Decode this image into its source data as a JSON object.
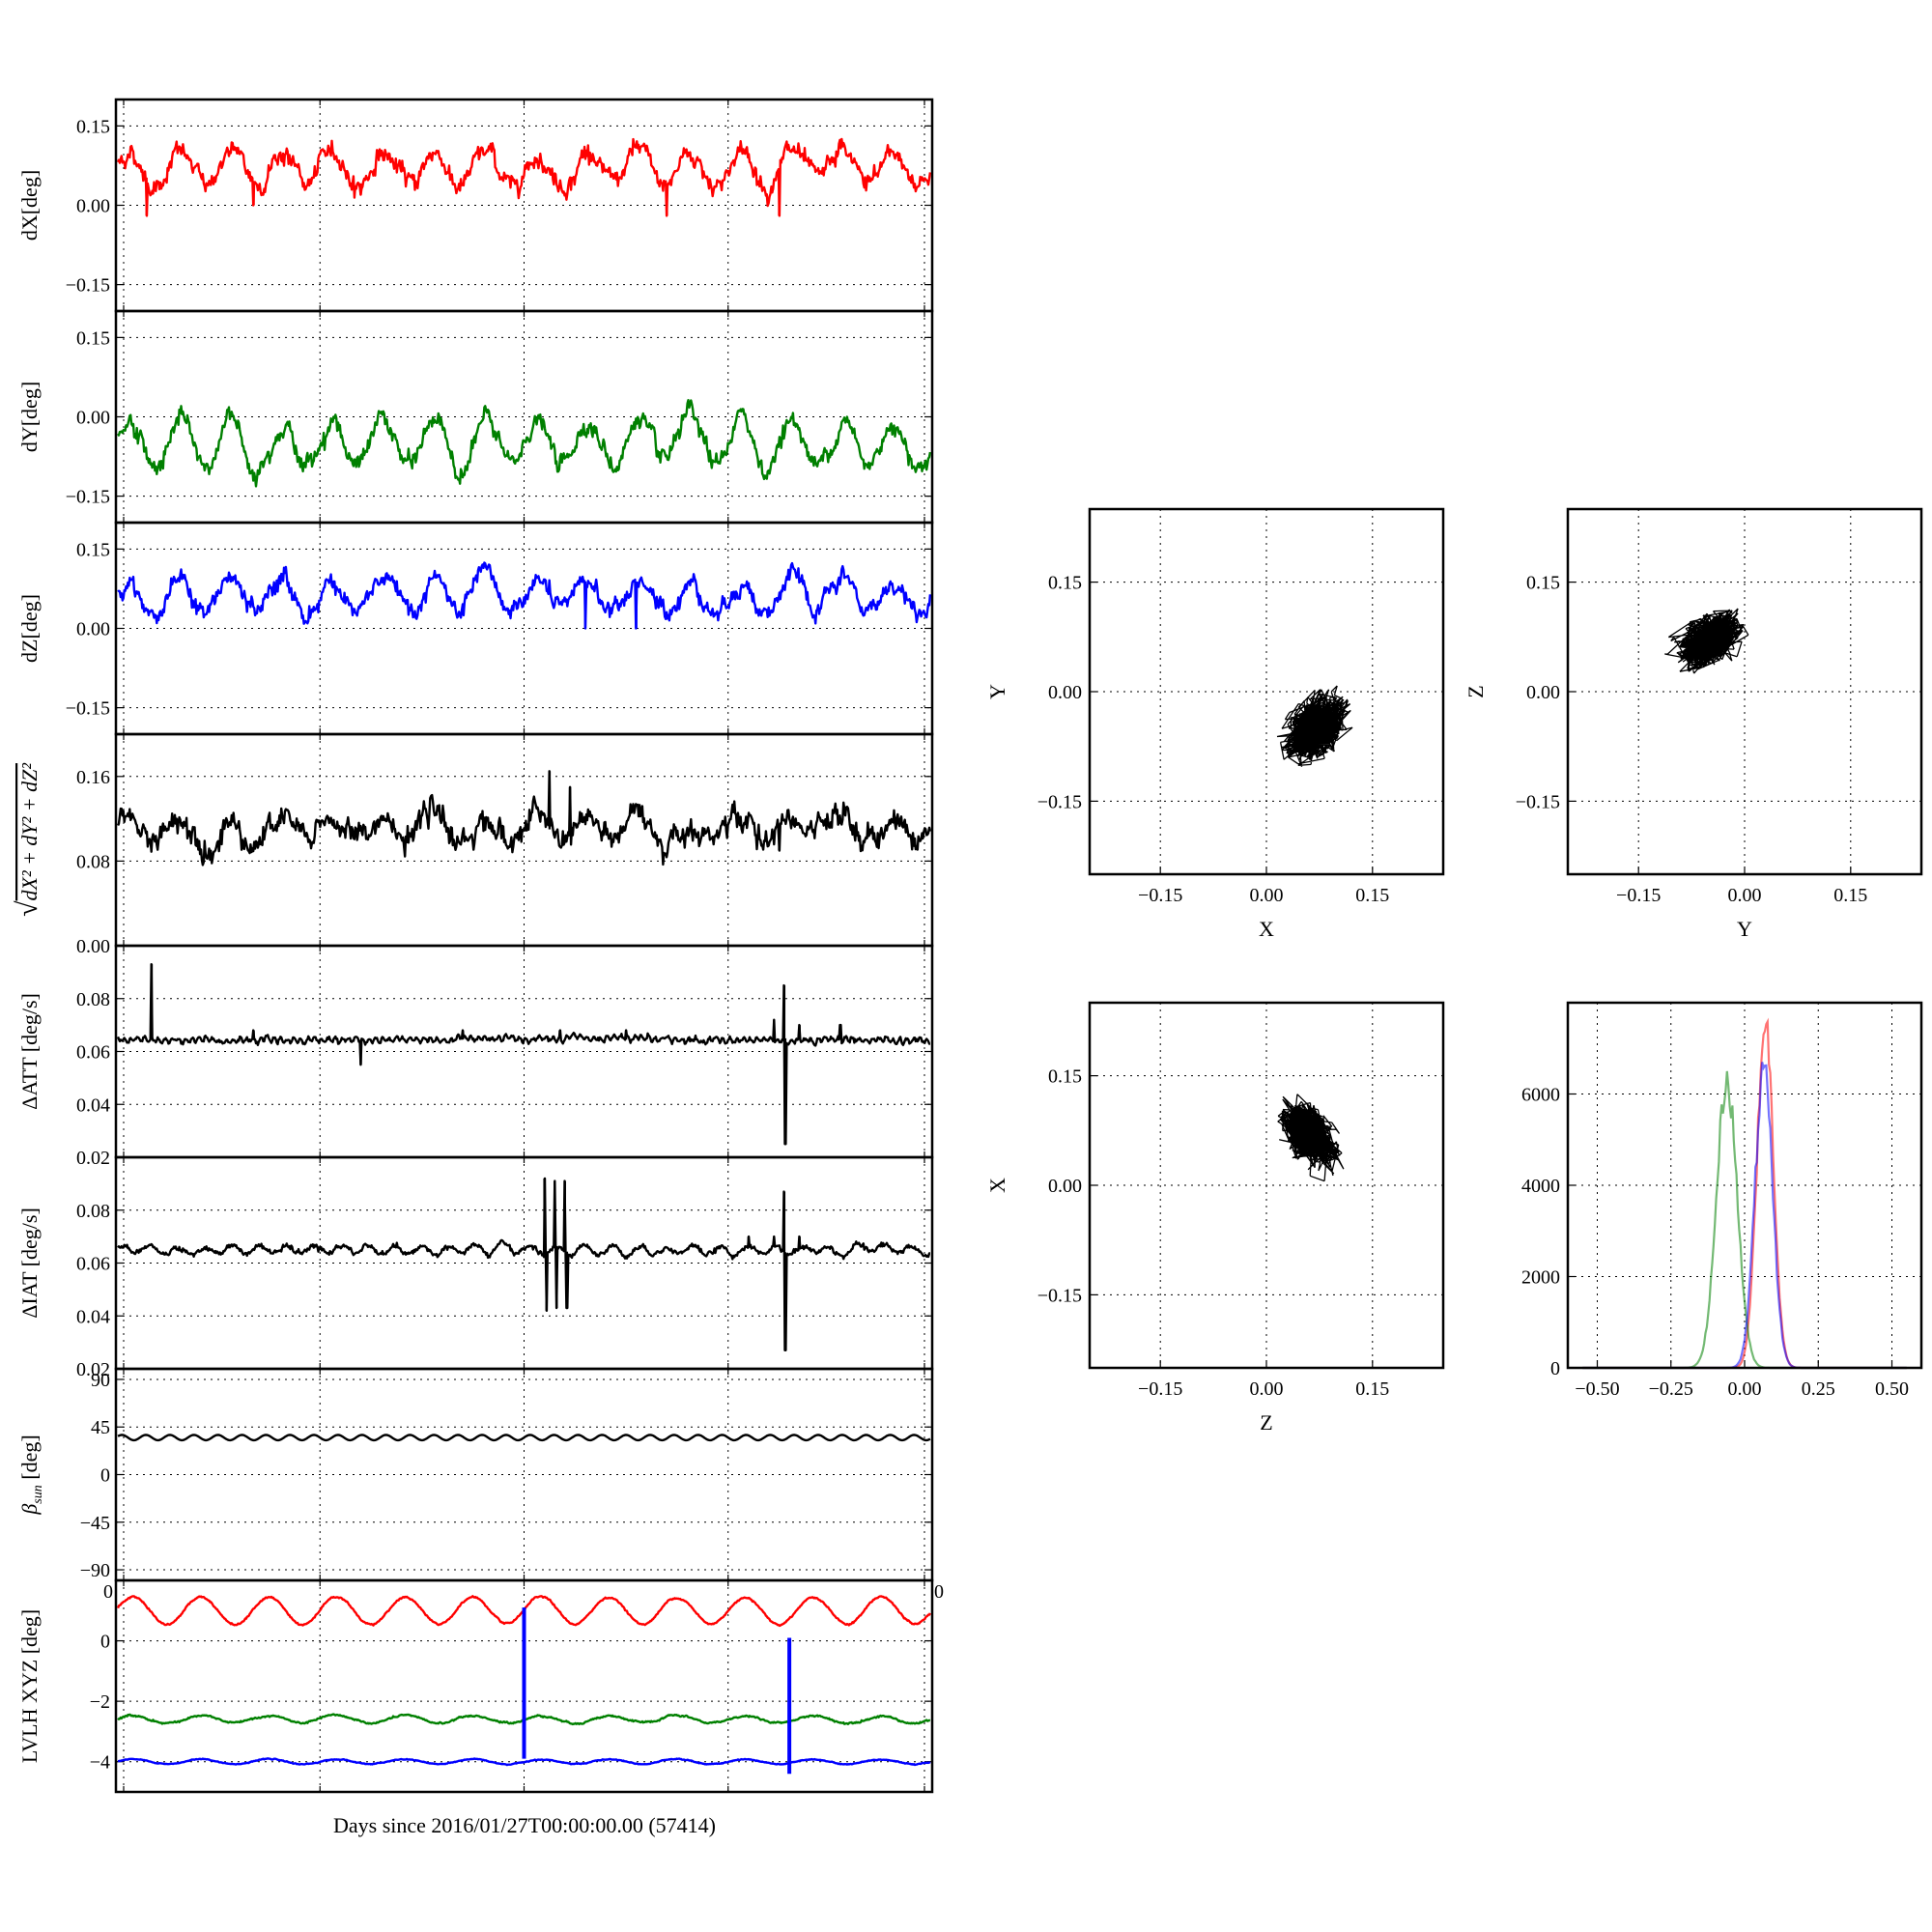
{
  "chart_data": [
    {
      "type": "line",
      "ylabel": "dX[deg]",
      "ylim": [
        -0.2,
        0.2
      ],
      "yticks": [
        "0.15",
        "0.00",
        "−0.15"
      ],
      "ytick_values": [
        0.15,
        0.0,
        -0.15
      ],
      "xlim": [
        0,
        8
      ],
      "grid": true,
      "series": [
        {
          "color": "#ff0000",
          "base": 0.07,
          "amp": 0.03,
          "periods": 16,
          "noise": 0.012,
          "spikes": [
            [
              0.3,
              -0.02
            ],
            [
              1.35,
              0.0
            ],
            [
              2.4,
              0.02
            ],
            [
              5.4,
              -0.02
            ],
            [
              6.5,
              -0.02
            ]
          ]
        }
      ]
    },
    {
      "type": "line",
      "ylabel": "dY[deg]",
      "ylim": [
        -0.2,
        0.2
      ],
      "yticks": [
        "0.15",
        "0.00",
        "−0.15"
      ],
      "ytick_values": [
        0.15,
        0.0,
        -0.15
      ],
      "xlim": [
        0,
        8
      ],
      "grid": true,
      "series": [
        {
          "color": "#008000",
          "base": -0.05,
          "amp": 0.045,
          "periods": 16,
          "noise": 0.012
        }
      ]
    },
    {
      "type": "line",
      "ylabel": "dZ[deg]",
      "ylim": [
        -0.2,
        0.2
      ],
      "yticks": [
        "0.15",
        "0.00",
        "−0.15"
      ],
      "ytick_values": [
        0.15,
        0.0,
        -0.15
      ],
      "xlim": [
        0,
        8
      ],
      "grid": true,
      "series": [
        {
          "color": "#0000ff",
          "base": 0.06,
          "amp": 0.03,
          "periods": 16,
          "noise": 0.012,
          "spikes": [
            [
              4.6,
              0.0
            ],
            [
              5.1,
              0.0
            ]
          ]
        }
      ]
    },
    {
      "type": "line",
      "ylabel_parts": {
        "root": "√",
        "expr": "dX² + dY² + dZ²"
      },
      "ylim": [
        0.0,
        0.2
      ],
      "yticks": [
        "0.16",
        "0.08",
        "0.00"
      ],
      "ytick_values": [
        0.16,
        0.08,
        0.0
      ],
      "xlim": [
        0,
        8
      ],
      "grid": true,
      "series": [
        {
          "color": "#000000",
          "base": 0.11,
          "amp": 0.01,
          "periods": 16,
          "noise": 0.008,
          "spikes": [
            [
              4.25,
              0.165
            ],
            [
              4.45,
              0.15
            ],
            [
              6.5,
              0.09
            ]
          ]
        }
      ]
    },
    {
      "type": "line",
      "ylabel": "ΔATT [deg/s]",
      "ylim": [
        0.02,
        0.1
      ],
      "yticks": [
        "0.08",
        "0.06",
        "0.04",
        "0.02"
      ],
      "ytick_values": [
        0.08,
        0.06,
        0.04,
        0.02
      ],
      "xlim": [
        0,
        8
      ],
      "grid": true,
      "series": [
        {
          "color": "#000000",
          "base": 0.0645,
          "amp": 0.0008,
          "periods": 120,
          "noise": 0.0006,
          "spikes": [
            [
              0.35,
              0.093
            ],
            [
              1.35,
              0.068
            ],
            [
              2.4,
              0.055
            ],
            [
              3.4,
              0.068
            ],
            [
              4.35,
              0.068
            ],
            [
              5.0,
              0.068
            ],
            [
              6.55,
              0.085
            ],
            [
              6.56,
              0.025
            ],
            [
              6.45,
              0.072
            ],
            [
              6.7,
              0.07
            ],
            [
              7.1,
              0.07
            ]
          ]
        }
      ]
    },
    {
      "type": "line",
      "ylabel": "ΔIAT [deg/s]",
      "ylim": [
        0.02,
        0.1
      ],
      "yticks": [
        "0.08",
        "0.06",
        "0.04",
        "0.02"
      ],
      "ytick_values": [
        0.08,
        0.06,
        0.04,
        0.02
      ],
      "xlim": [
        0,
        8
      ],
      "grid": true,
      "series": [
        {
          "color": "#000000",
          "base": 0.065,
          "amp": 0.0015,
          "periods": 30,
          "noise": 0.0007,
          "spikes": [
            [
              4.2,
              0.092
            ],
            [
              4.22,
              0.042
            ],
            [
              4.3,
              0.091
            ],
            [
              4.32,
              0.043
            ],
            [
              4.4,
              0.091
            ],
            [
              4.42,
              0.043
            ],
            [
              6.55,
              0.087
            ],
            [
              6.56,
              0.027
            ],
            [
              6.45,
              0.07
            ],
            [
              6.7,
              0.07
            ],
            [
              6.2,
              0.07
            ]
          ]
        }
      ]
    },
    {
      "type": "line",
      "ylabel_parts": {
        "sym": "β",
        "sub": "sun",
        "unit": " [deg]"
      },
      "ylim": [
        -100,
        100
      ],
      "yticks": [
        "90",
        "45",
        "0",
        "−45",
        "−90"
      ],
      "ytick_values": [
        90,
        45,
        0,
        -45,
        -90
      ],
      "xlim": [
        0,
        8
      ],
      "grid": true,
      "series": [
        {
          "color": "#000000",
          "base": 35,
          "amp": 2.5,
          "periods": 34,
          "noise": 0.0
        }
      ]
    },
    {
      "type": "line",
      "ylabel": "LVLH XYZ [deg]",
      "ylim": [
        -5,
        2
      ],
      "yticks": [
        "0",
        "−2",
        "−4"
      ],
      "ytick_values": [
        0,
        -2,
        -4
      ],
      "edge_labels": [
        "0",
        "0"
      ],
      "xlim": [
        0,
        8
      ],
      "grid": true,
      "series": [
        {
          "color": "#ff0000",
          "base": 1.0,
          "amp": 0.45,
          "periods": 12,
          "noise": 0.02
        },
        {
          "color": "#008000",
          "base": -2.6,
          "amp": 0.12,
          "periods": 12,
          "noise": 0.02
        },
        {
          "color": "#0000ff",
          "base": -4.0,
          "amp": 0.08,
          "periods": 12,
          "noise": 0.01
        }
      ],
      "vlines": [
        {
          "x": 4.0,
          "from": -3.9,
          "to": 1.1,
          "color": "#0000ff"
        },
        {
          "x": 6.6,
          "from": -4.4,
          "to": 0.1,
          "color": "#0000ff"
        }
      ]
    }
  ],
  "xlabel": "Days since 2016/01/27T00:00:00.00 (57414)",
  "scatter_panels": [
    {
      "type": "scatter",
      "xlabel": "X",
      "ylabel": "Y",
      "xlim": [
        -0.25,
        0.25
      ],
      "ylim": [
        -0.25,
        0.25
      ],
      "ticks": [
        "−0.15",
        "0.00",
        "0.15"
      ],
      "tick_values": [
        -0.15,
        0.0,
        0.15
      ],
      "center": [
        0.07,
        -0.05
      ],
      "spread": [
        0.035,
        0.035
      ],
      "corr": 0.4,
      "grid": true
    },
    {
      "type": "scatter",
      "xlabel": "Y",
      "ylabel": "Z",
      "xlim": [
        -0.25,
        0.25
      ],
      "ylim": [
        -0.25,
        0.25
      ],
      "ticks": [
        "−0.15",
        "0.00",
        "0.15"
      ],
      "tick_values": [
        -0.15,
        0.0,
        0.15
      ],
      "center": [
        -0.05,
        0.07
      ],
      "spread": [
        0.035,
        0.03
      ],
      "corr": 0.4,
      "grid": true
    },
    {
      "type": "scatter",
      "xlabel": "Z",
      "ylabel": "X",
      "xlim": [
        -0.25,
        0.25
      ],
      "ylim": [
        -0.25,
        0.25
      ],
      "ticks": [
        "−0.15",
        "0.00",
        "0.15"
      ],
      "tick_values": [
        -0.15,
        0.0,
        0.15
      ],
      "center": [
        0.06,
        0.07
      ],
      "spread": [
        0.03,
        0.035
      ],
      "corr": -0.45,
      "grid": true
    }
  ],
  "histogram_panel": {
    "type": "bar",
    "xlim": [
      -0.6,
      0.6
    ],
    "ylim": [
      0,
      8000
    ],
    "xticks": [
      "−0.50",
      "−0.25",
      "0.00",
      "0.25",
      "0.50"
    ],
    "xtick_values": [
      -0.5,
      -0.25,
      0.0,
      0.25,
      0.5
    ],
    "yticks": [
      "0",
      "2000",
      "4000",
      "6000"
    ],
    "ytick_values": [
      0,
      2000,
      4000,
      6000
    ],
    "grid": true,
    "series": [
      {
        "color": "#ff0000",
        "mean": 0.07,
        "sd": 0.028,
        "peak": 7600
      },
      {
        "color": "#008000",
        "mean": -0.06,
        "sd": 0.035,
        "peak": 6300
      },
      {
        "color": "#0000ff",
        "mean": 0.065,
        "sd": 0.03,
        "peak": 6500
      }
    ]
  }
}
